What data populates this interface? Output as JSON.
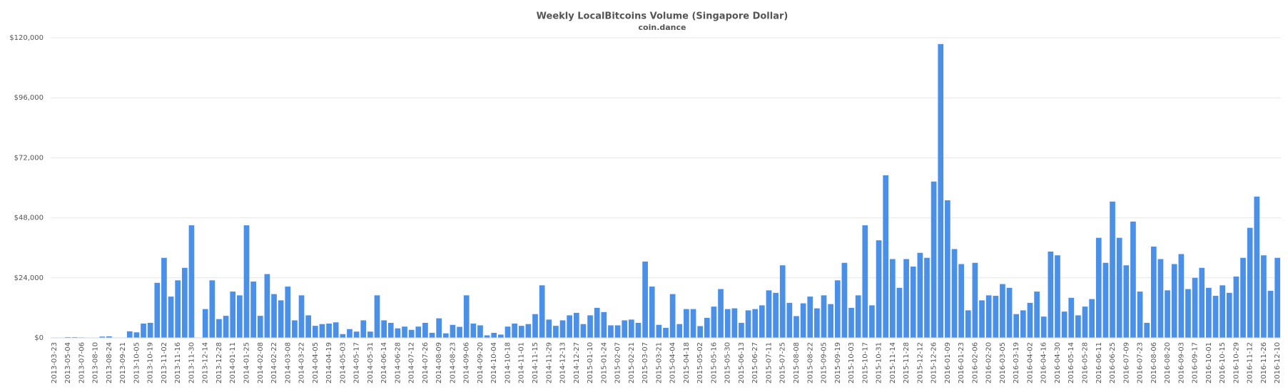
{
  "chart_data": {
    "type": "bar",
    "title": "Weekly LocalBitcoins Volume (Singapore Dollar)",
    "subtitle": "coin.dance",
    "color": "#4a90e8",
    "grid": true,
    "ylim": [
      0,
      120000
    ],
    "yticks": [
      {
        "value": 0,
        "label": "$0"
      },
      {
        "value": 24000,
        "label": "$24,000"
      },
      {
        "value": 48000,
        "label": "$48,000"
      },
      {
        "value": 72000,
        "label": "$72,000"
      },
      {
        "value": 96000,
        "label": "$96,000"
      },
      {
        "value": 120000,
        "label": "$120,000"
      }
    ],
    "categories": [
      "2013-03-23",
      null,
      "2013-05-04",
      null,
      "2013-07-06",
      null,
      "2013-08-10",
      null,
      "2013-08-24",
      null,
      "2013-09-21",
      null,
      "2013-10-05",
      null,
      "2013-10-19",
      null,
      "2013-11-02",
      null,
      "2013-11-16",
      null,
      "2013-11-30",
      null,
      "2013-12-14",
      null,
      "2013-12-28",
      null,
      "2014-01-11",
      null,
      "2014-01-25",
      null,
      "2014-02-08",
      null,
      "2014-02-22",
      null,
      "2014-03-08",
      null,
      "2014-03-22",
      null,
      "2014-04-05",
      null,
      "2014-04-19",
      null,
      "2014-05-03",
      null,
      "2014-05-17",
      null,
      "2014-05-31",
      null,
      "2014-06-14",
      null,
      "2014-06-28",
      null,
      "2014-07-12",
      null,
      "2014-07-26",
      null,
      "2014-08-09",
      null,
      "2014-08-23",
      null,
      "2014-09-06",
      null,
      "2014-09-20",
      null,
      "2014-10-04",
      null,
      "2014-10-18",
      null,
      "2014-11-01",
      null,
      "2014-11-15",
      null,
      "2014-11-29",
      null,
      "2014-12-13",
      null,
      "2014-12-27",
      null,
      "2015-01-10",
      null,
      "2015-01-24",
      null,
      "2015-02-07",
      null,
      "2015-02-21",
      null,
      "2015-03-07",
      null,
      "2015-03-21",
      null,
      "2015-04-04",
      null,
      "2015-04-18",
      null,
      "2015-05-02",
      null,
      "2015-05-16",
      null,
      "2015-05-30",
      null,
      "2015-06-13",
      null,
      "2015-06-27",
      null,
      "2015-07-11",
      null,
      "2015-07-25",
      null,
      "2015-08-08",
      null,
      "2015-08-22",
      null,
      "2015-09-05",
      null,
      "2015-09-19",
      null,
      "2015-10-03",
      null,
      "2015-10-17",
      null,
      "2015-10-31",
      null,
      "2015-11-14",
      null,
      "2015-11-28",
      null,
      "2015-12-12",
      null,
      "2015-12-26",
      null,
      "2016-01-09",
      null,
      "2016-01-23",
      null,
      "2016-02-06",
      null,
      "2016-02-20",
      null,
      "2016-03-05",
      null,
      "2016-03-19",
      null,
      "2016-04-02",
      null,
      "2016-04-16",
      null,
      "2016-04-30",
      null,
      "2016-05-14",
      null,
      "2016-05-28",
      null,
      "2016-06-11",
      null,
      "2016-06-25",
      null,
      "2016-07-09",
      null,
      "2016-07-23",
      null,
      "2016-08-06",
      null,
      "2016-08-20",
      null,
      "2016-09-03",
      null,
      "2016-09-17",
      null,
      "2016-10-01",
      null,
      "2016-10-15",
      null,
      "2016-10-29",
      null,
      "2016-11-12",
      null,
      "2016-11-26",
      null,
      "2016-12-10"
    ],
    "values": [
      0,
      0,
      300,
      300,
      200,
      100,
      100,
      500,
      600,
      100,
      100,
      2600,
      2200,
      5700,
      6000,
      22000,
      32000,
      16500,
      23000,
      28000,
      45000,
      0,
      11500,
      23000,
      7500,
      8800,
      18500,
      17000,
      45000,
      22500,
      8800,
      25500,
      17500,
      15000,
      20500,
      7000,
      17000,
      9000,
      4800,
      5500,
      5700,
      6200,
      1500,
      3500,
      2500,
      7000,
      2500,
      17000,
      7000,
      6000,
      3800,
      4500,
      3200,
      4500,
      6000,
      2000,
      7800,
      1800,
      5200,
      4400,
      17000,
      5700,
      5000,
      1000,
      2000,
      1300,
      4500,
      5700,
      4800,
      5500,
      9500,
      21000,
      7300,
      4800,
      7000,
      9000,
      10000,
      5500,
      9000,
      12000,
      10300,
      5000,
      5000,
      7000,
      7300,
      6000,
      30500,
      20500,
      5200,
      4000,
      17500,
      5500,
      11500,
      11500,
      4700,
      8000,
      12500,
      19500,
      11500,
      11800,
      6000,
      11000,
      11500,
      13000,
      19000,
      18000,
      29000,
      14000,
      8700,
      13800,
      16500,
      11800,
      17000,
      13500,
      23000,
      30000,
      12000,
      17000,
      45000,
      13000,
      39000,
      65000,
      31500,
      20000,
      31500,
      28500,
      34000,
      32000,
      62500,
      117500,
      55000,
      35500,
      29500,
      11000,
      30000,
      15000,
      17000,
      16800,
      21500,
      20000,
      9500,
      11000,
      14000,
      18500,
      8500,
      34500,
      33000,
      10500,
      16000,
      9000,
      12500,
      15500,
      40000,
      30000,
      54500,
      40000,
      29000,
      46500,
      18500,
      6000,
      36500,
      31500,
      19000,
      29500,
      33500,
      19500,
      24000,
      28000,
      20000,
      16800,
      21000,
      18000,
      24500,
      32000,
      44000,
      56500,
      33000,
      18800,
      32000
    ]
  }
}
